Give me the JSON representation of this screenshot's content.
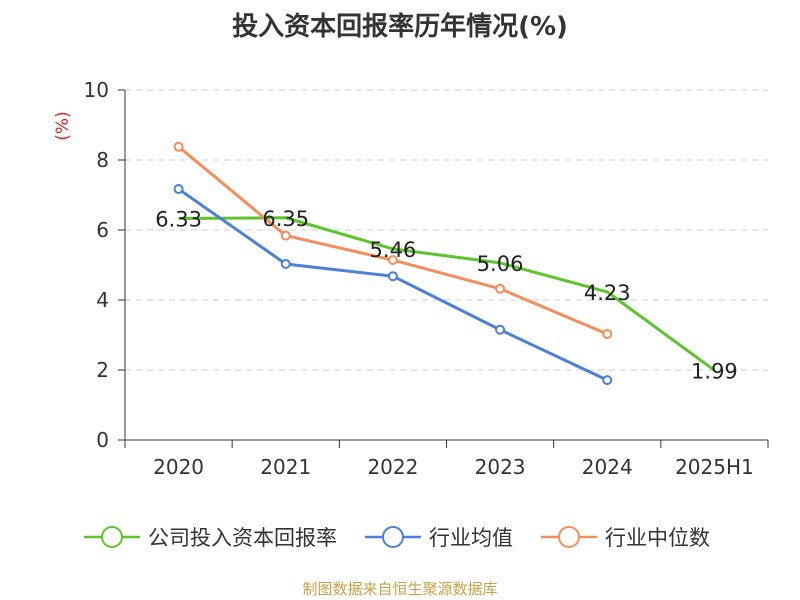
{
  "title": "投入资本回报率历年情况(%)",
  "source": "制图数据来自恒生聚源数据库",
  "chart_data": {
    "type": "line",
    "title": "投入资本回报率历年情况(%)",
    "ylabel": "(%)",
    "ylim": [
      0,
      10
    ],
    "yticks": [
      0,
      2,
      4,
      6,
      8,
      10
    ],
    "categories": [
      "2020",
      "2021",
      "2022",
      "2023",
      "2024",
      "2025H1"
    ],
    "grid": true,
    "legend_position": "bottom",
    "series": [
      {
        "name": "公司投入资本回报率",
        "color": "#5ec42b",
        "values": [
          6.33,
          6.35,
          5.46,
          5.06,
          4.23,
          1.99
        ],
        "labels": [
          "6.33",
          "6.35",
          "5.46",
          "5.06",
          "4.23",
          "1.99"
        ]
      },
      {
        "name": "行业均值",
        "color": "#4c7fd8",
        "values": [
          7.17,
          5.03,
          4.68,
          3.15,
          1.71,
          null
        ]
      },
      {
        "name": "行业中位数",
        "color": "#f48d5a",
        "values": [
          8.38,
          5.84,
          5.14,
          4.32,
          3.03,
          null
        ]
      }
    ]
  }
}
